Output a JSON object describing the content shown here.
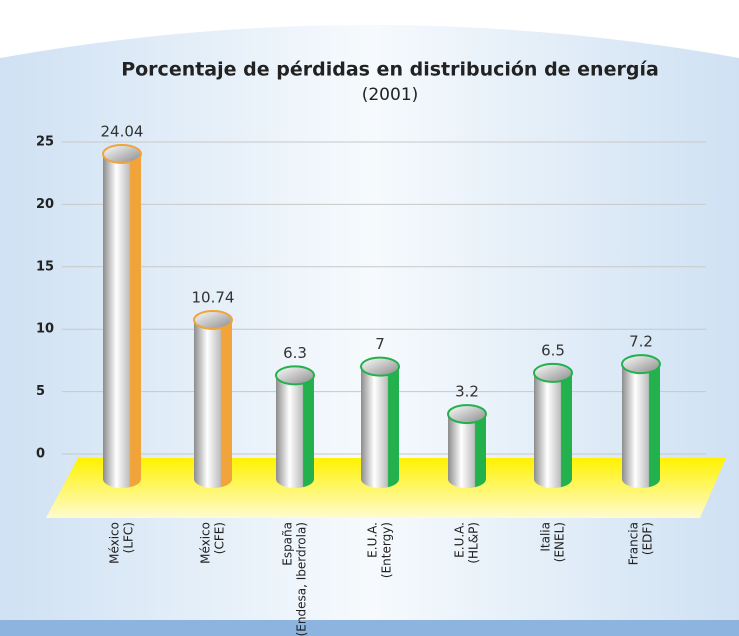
{
  "chart_data": {
    "type": "bar",
    "title": "Porcentaje de pérdidas en distribución de energía",
    "subtitle": "(2001)",
    "categories": [
      [
        "México",
        "(LFC)"
      ],
      [
        "México",
        "(CFE)"
      ],
      [
        "España",
        "(Endesa, Iberdrola)"
      ],
      [
        "E.U.A.",
        "(Entergy)"
      ],
      [
        "E.U.A.",
        "(HL&P)"
      ],
      [
        "Italia",
        "(ENEL)"
      ],
      [
        "Francia",
        "(EDF)"
      ]
    ],
    "values": [
      24.04,
      10.74,
      6.3,
      7,
      3.2,
      6.5,
      7.2
    ],
    "colors": [
      "#f0a43a",
      "#f0a43a",
      "#22b14c",
      "#22b14c",
      "#22b14c",
      "#22b14c",
      "#22b14c"
    ],
    "ylim": [
      0,
      25
    ],
    "yticks": [
      0,
      5,
      10,
      15,
      20,
      25
    ],
    "grid": true
  }
}
